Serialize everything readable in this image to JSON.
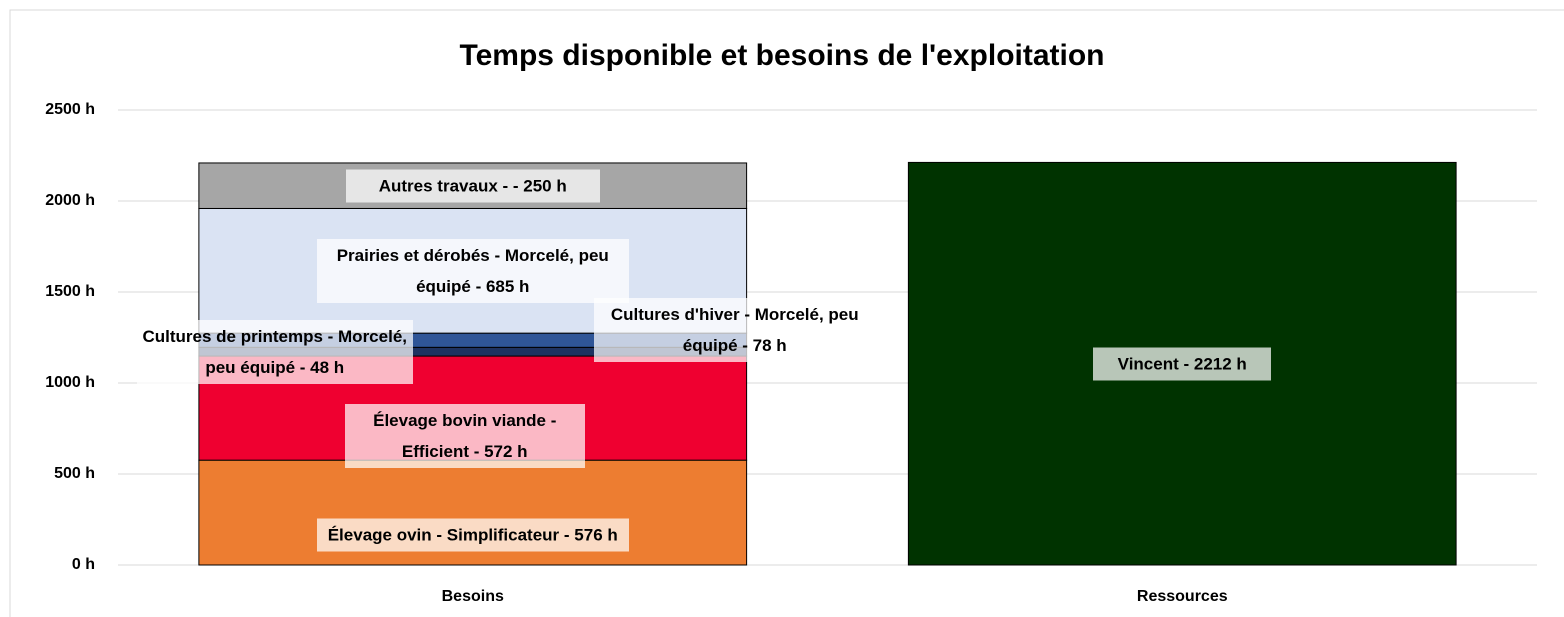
{
  "chart_data": {
    "type": "stacked_bar",
    "title": "Temps disponible et besoins de l'exploitation",
    "categories": [
      "Besoins",
      "Ressources"
    ],
    "series": [
      {
        "color": "#ed7d31",
        "values": [
          576,
          null
        ],
        "value_labels": [
          "Élevage ovin - Simplificateur - 576 h",
          null
        ]
      },
      {
        "color": "#ef0030",
        "values": [
          572,
          null
        ],
        "value_labels": [
          "Élevage bovin viande - Efficient - 572 h",
          null
        ]
      },
      {
        "color": "#1f3260",
        "values": [
          48,
          null
        ],
        "value_labels": [
          "Cultures de printemps - Morcelé, peu équipé - 48 h",
          null
        ]
      },
      {
        "color": "#2f5597",
        "values": [
          78,
          null
        ],
        "value_labels": [
          "Cultures d'hiver - Morcelé, peu équipé - 78 h",
          null
        ]
      },
      {
        "color": "#dae3f3",
        "values": [
          685,
          null
        ],
        "value_labels": [
          "Prairies et dérobés - Morcelé, peu équipé - 685 h",
          null
        ]
      },
      {
        "color": "#a6a6a6",
        "values": [
          250,
          null
        ],
        "value_labels": [
          "Autres travaux -  - 250 h",
          null
        ]
      },
      {
        "color": "#003300",
        "values": [
          null,
          2212
        ],
        "value_labels": [
          null,
          "Vincent - 2212 h"
        ]
      }
    ],
    "ylim": [
      0,
      2500
    ],
    "yticks": [
      {
        "value": 0,
        "label": "0 h"
      },
      {
        "value": 500,
        "label": "500 h"
      },
      {
        "value": 1000,
        "label": "1000 h"
      },
      {
        "value": 1500,
        "label": "1500 h"
      },
      {
        "value": 2000,
        "label": "2000 h"
      },
      {
        "value": 2500,
        "label": "2500 h"
      }
    ],
    "grid": true
  }
}
